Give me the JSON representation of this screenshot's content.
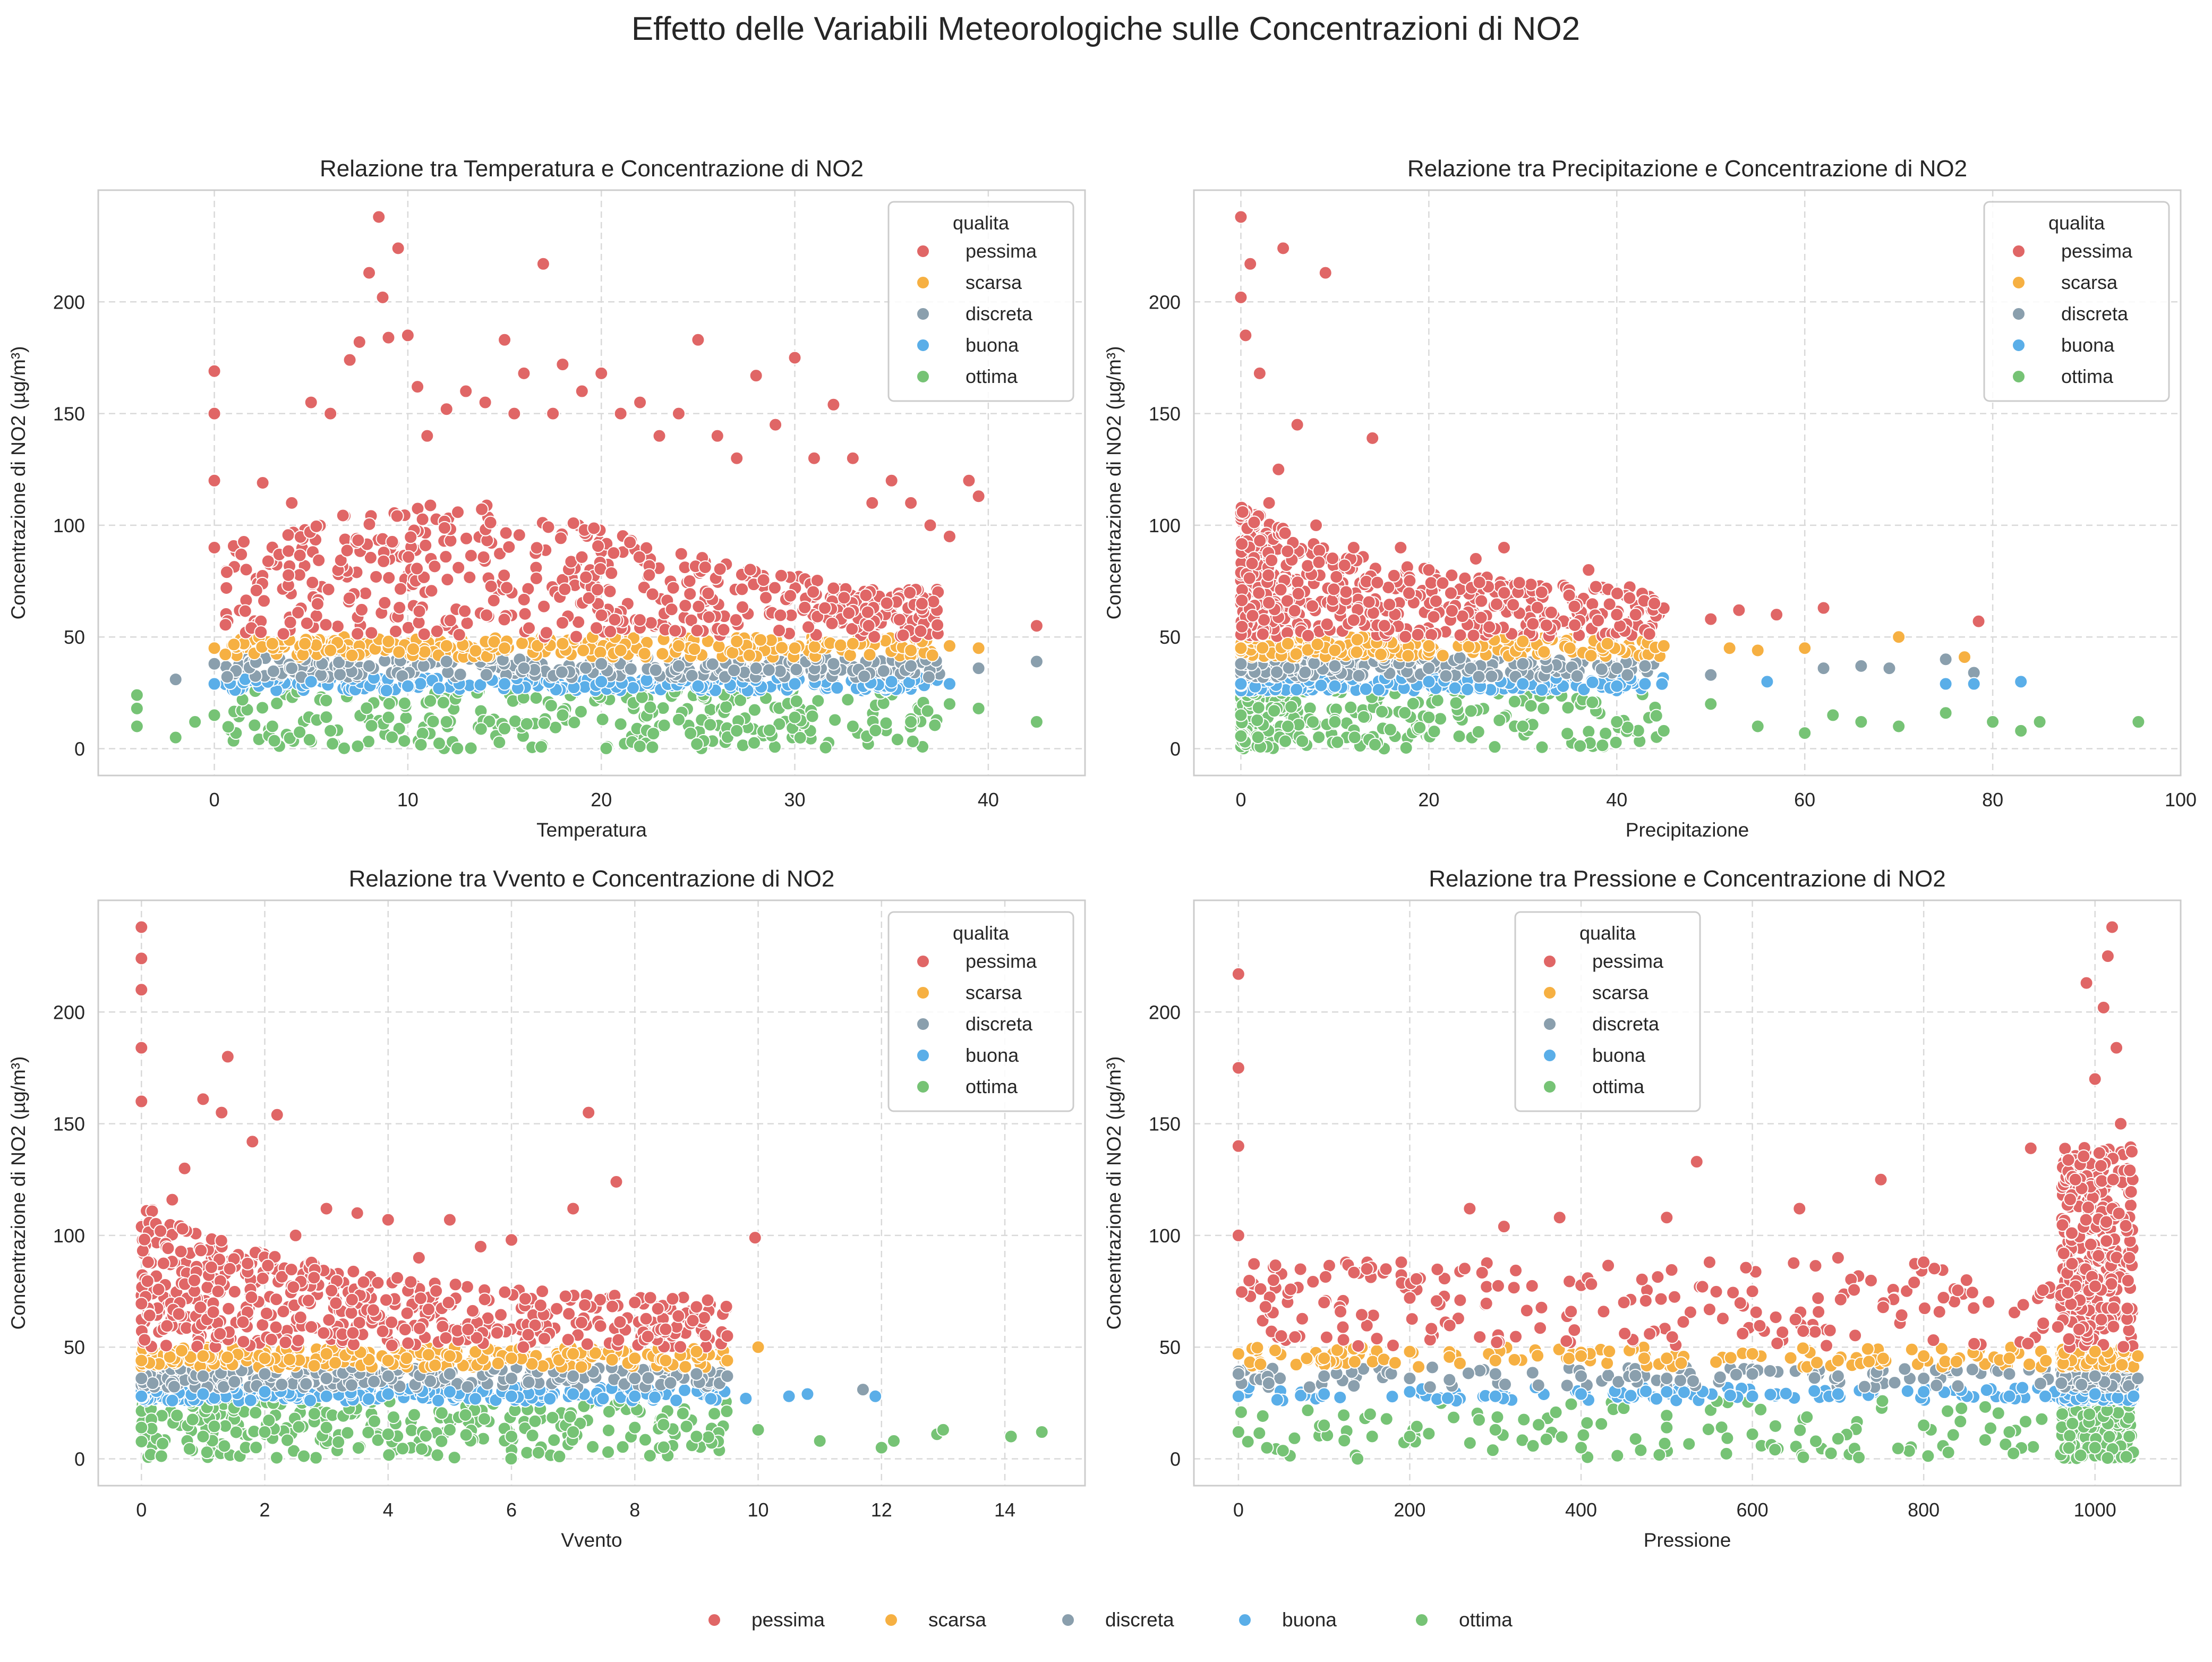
{
  "figure": {
    "suptitle": "Effetto delle Variabili Meteorologiche sulle Concentrazioni di NO2"
  },
  "categories": [
    "pessima",
    "scarsa",
    "discreta",
    "buona",
    "ottima"
  ],
  "colors": {
    "pessima": "#e06666",
    "scarsa": "#f6b042",
    "discreta": "#8a9fad",
    "buona": "#5aaee8",
    "ottima": "#76c375"
  },
  "legend_title": "qualita",
  "bottom_legend": {
    "labels": [
      "pessima",
      "scarsa",
      "discreta",
      "buona",
      "ottima"
    ]
  },
  "chart_data": [
    {
      "type": "scatter",
      "title": "Relazione tra Temperatura e Concentrazione di NO2",
      "xlabel": "Temperatura",
      "ylabel": "Concentrazione di NO2 (µg/m³)",
      "xlim": [
        -6,
        45
      ],
      "ylim": [
        -12,
        250
      ],
      "xticks": [
        0,
        10,
        20,
        30,
        40
      ],
      "yticks": [
        0,
        50,
        100,
        150,
        200
      ],
      "legend_location": "upper right",
      "series": [
        {
          "name": "pessima",
          "x": [
            0,
            0,
            0,
            0,
            2.5,
            4,
            5,
            6,
            7,
            7.5,
            8,
            8.5,
            8.7,
            9,
            9.5,
            10,
            10.5,
            11,
            12,
            13,
            14,
            15,
            15.5,
            16,
            17,
            17.5,
            18,
            19,
            20,
            21,
            22,
            23,
            24,
            25,
            26,
            27,
            28,
            29,
            30,
            31,
            32,
            33,
            34,
            35,
            36,
            37,
            38,
            39,
            39.5,
            42.5
          ],
          "y": [
            169,
            150,
            120,
            90,
            119,
            110,
            155,
            150,
            174,
            182,
            213,
            238,
            202,
            184,
            224,
            185,
            162,
            140,
            152,
            160,
            155,
            183,
            150,
            168,
            217,
            150,
            172,
            160,
            168,
            150,
            155,
            140,
            150,
            183,
            140,
            130,
            167,
            145,
            175,
            130,
            154,
            130,
            110,
            120,
            110,
            100,
            95,
            120,
            113,
            55
          ]
        },
        {
          "name": "scarsa",
          "x": [
            0,
            3,
            6,
            9,
            12,
            15,
            18,
            21,
            24,
            27,
            30,
            33,
            36,
            38,
            39.5
          ],
          "y": [
            45,
            47,
            44,
            48,
            46,
            45,
            47,
            44,
            46,
            48,
            45,
            47,
            44,
            46,
            45
          ]
        },
        {
          "name": "discreta",
          "x": [
            -2,
            0,
            4,
            8,
            12,
            16,
            20,
            24,
            28,
            32,
            36,
            39.5,
            42.5
          ],
          "y": [
            31,
            38,
            36,
            37,
            39,
            36,
            38,
            37,
            36,
            38,
            37,
            36,
            39
          ]
        },
        {
          "name": "buona",
          "x": [
            0,
            5,
            10,
            15,
            20,
            25,
            30,
            35,
            38
          ],
          "y": [
            29,
            30,
            28,
            29,
            30,
            28,
            29,
            30,
            29
          ]
        },
        {
          "name": "ottima",
          "x": [
            -4,
            -4,
            -4,
            -2,
            -1,
            0,
            3,
            6,
            9,
            12,
            15,
            18,
            21,
            24,
            27,
            30,
            33,
            36,
            38,
            39.5,
            42.5
          ],
          "y": [
            24,
            18,
            10,
            5,
            12,
            15,
            10,
            8,
            14,
            12,
            9,
            15,
            11,
            13,
            8,
            14,
            10,
            12,
            20,
            18,
            12
          ]
        }
      ]
    },
    {
      "type": "scatter",
      "title": "Relazione tra Precipitazione e Concentrazione di NO2",
      "xlabel": "Precipitazione",
      "ylabel": "Concentrazione di NO2 (µg/m³)",
      "xlim": [
        -5,
        100
      ],
      "ylim": [
        -12,
        250
      ],
      "xticks": [
        0,
        20,
        40,
        60,
        80,
        100
      ],
      "yticks": [
        0,
        50,
        100,
        150,
        200
      ],
      "legend_location": "upper right",
      "series": [
        {
          "name": "pessima",
          "x": [
            0,
            0,
            0.5,
            1,
            2,
            3,
            4,
            4.5,
            6,
            8,
            9,
            12,
            14,
            17,
            20,
            25,
            28,
            32,
            37,
            40,
            42,
            44,
            50,
            53,
            57,
            62,
            78.5
          ],
          "y": [
            238,
            202,
            185,
            217,
            168,
            110,
            125,
            224,
            145,
            100,
            213,
            90,
            139,
            90,
            80,
            85,
            90,
            70,
            80,
            60,
            60,
            65,
            58,
            62,
            60,
            63,
            57
          ]
        },
        {
          "name": "scarsa",
          "x": [
            0,
            5,
            10,
            20,
            30,
            35,
            39,
            45,
            52,
            55,
            60,
            70,
            77
          ],
          "y": [
            45,
            47,
            44,
            46,
            48,
            45,
            47,
            46,
            45,
            44,
            45,
            50,
            41
          ]
        },
        {
          "name": "discreta",
          "x": [
            0,
            10,
            20,
            30,
            40,
            43,
            50,
            62,
            66,
            69,
            75,
            78
          ],
          "y": [
            38,
            37,
            36,
            38,
            36,
            37,
            33,
            36,
            37,
            36,
            40,
            34
          ]
        },
        {
          "name": "buona",
          "x": [
            0,
            10,
            20,
            30,
            40,
            43,
            56,
            75,
            78,
            83
          ],
          "y": [
            29,
            28,
            30,
            29,
            28,
            29,
            30,
            29,
            29,
            30
          ]
        },
        {
          "name": "ottima",
          "x": [
            0,
            5,
            10,
            20,
            30,
            40,
            45,
            50,
            55,
            60,
            63,
            66,
            70,
            75,
            80,
            83,
            85,
            95.5
          ],
          "y": [
            15,
            10,
            12,
            14,
            10,
            12,
            8,
            20,
            10,
            7,
            15,
            12,
            10,
            16,
            12,
            8,
            12,
            12
          ]
        }
      ]
    },
    {
      "type": "scatter",
      "title": "Relazione tra Vvento e Concentrazione di NO2",
      "xlabel": "Vvento",
      "ylabel": "Concentrazione di NO2 (µg/m³)",
      "xlim": [
        -0.7,
        15.3
      ],
      "ylim": [
        -12,
        250
      ],
      "xticks": [
        0,
        2,
        4,
        6,
        8,
        10,
        12,
        14
      ],
      "yticks": [
        0,
        50,
        100,
        150,
        200
      ],
      "legend_location": "upper right",
      "series": [
        {
          "name": "pessima",
          "x": [
            0,
            0,
            0,
            0,
            0,
            0.5,
            0.7,
            1,
            1.3,
            1.4,
            1.8,
            2.2,
            2.5,
            3,
            3.5,
            4,
            4.5,
            5,
            5.5,
            6,
            6.5,
            7,
            7.25,
            7.7,
            8,
            8.5,
            9,
            9.5,
            9.95
          ],
          "y": [
            238,
            224,
            210,
            184,
            160,
            116,
            130,
            161,
            155,
            180,
            142,
            154,
            100,
            112,
            110,
            107,
            90,
            107,
            95,
            98,
            75,
            112,
            155,
            124,
            70,
            58,
            68,
            55,
            99
          ]
        },
        {
          "name": "scarsa",
          "x": [
            0,
            1,
            2,
            3,
            4,
            5,
            6,
            7,
            8,
            8.5,
            9,
            9.5,
            10
          ],
          "y": [
            44,
            46,
            45,
            47,
            44,
            46,
            45,
            47,
            45,
            44,
            48,
            44,
            50
          ]
        },
        {
          "name": "discreta",
          "x": [
            0,
            1,
            2,
            3,
            4,
            5,
            6,
            7,
            8,
            9,
            9.5,
            11.7
          ],
          "y": [
            36,
            37,
            38,
            36,
            37,
            38,
            36,
            37,
            36,
            38,
            37,
            31
          ]
        },
        {
          "name": "buona",
          "x": [
            0,
            1,
            2,
            3,
            4,
            5,
            6,
            7,
            8,
            9.8,
            10.5,
            10.8,
            11.9
          ],
          "y": [
            28,
            29,
            30,
            28,
            29,
            30,
            28,
            29,
            28,
            27,
            28,
            29,
            28
          ]
        },
        {
          "name": "ottima",
          "x": [
            0,
            1,
            2,
            3,
            4,
            5,
            6,
            7,
            8,
            9,
            10,
            11,
            12,
            12.2,
            12.9,
            13,
            14.1,
            14.6
          ],
          "y": [
            14,
            10,
            12,
            14,
            11,
            13,
            10,
            12,
            14,
            10,
            13,
            8,
            5,
            8,
            11,
            13,
            10,
            12
          ]
        }
      ]
    },
    {
      "type": "scatter",
      "title": "Relazione tra Pressione e Concentrazione di NO2",
      "xlabel": "Pressione",
      "ylabel": "Concentrazione di NO2 (µg/m³)",
      "xlim": [
        -52,
        1100
      ],
      "ylim": [
        -12,
        250
      ],
      "xticks": [
        0,
        200,
        400,
        600,
        800,
        1000
      ],
      "yticks": [
        0,
        50,
        100,
        150,
        200
      ],
      "legend_location": "upper center",
      "series": [
        {
          "name": "pessima",
          "x": [
            0,
            0,
            0,
            0,
            50,
            100,
            150,
            200,
            270,
            310,
            375,
            450,
            500,
            535,
            550,
            600,
            655,
            700,
            750,
            800,
            850,
            925,
            990,
            1000,
            1010,
            1015,
            1020,
            1025,
            1030,
            1040
          ],
          "y": [
            217,
            175,
            140,
            100,
            55,
            70,
            85,
            72,
            112,
            104,
            108,
            70,
            108,
            133,
            88,
            75,
            112,
            90,
            125,
            88,
            80,
            139,
            213,
            170,
            202,
            225,
            238,
            184,
            150,
            90
          ]
        },
        {
          "name": "scarsa",
          "x": [
            0,
            100,
            200,
            300,
            400,
            500,
            600,
            700,
            800,
            900,
            1000,
            1050
          ],
          "y": [
            47,
            45,
            48,
            44,
            46,
            45,
            47,
            44,
            46,
            45,
            48,
            46
          ]
        },
        {
          "name": "discreta",
          "x": [
            0,
            100,
            200,
            300,
            400,
            500,
            600,
            700,
            800,
            900,
            1000,
            1050
          ],
          "y": [
            38,
            37,
            36,
            38,
            37,
            36,
            38,
            37,
            36,
            38,
            37,
            36
          ]
        },
        {
          "name": "buona",
          "x": [
            0,
            100,
            200,
            300,
            400,
            500,
            600,
            700,
            800,
            900,
            1000,
            1045
          ],
          "y": [
            28,
            29,
            30,
            28,
            29,
            30,
            28,
            29,
            30,
            28,
            29,
            28
          ]
        },
        {
          "name": "ottima",
          "x": [
            0,
            100,
            200,
            300,
            400,
            500,
            600,
            700,
            800,
            900,
            1000,
            1040
          ],
          "y": [
            12,
            15,
            10,
            13,
            5,
            14,
            11,
            9,
            15,
            12,
            5,
            10
          ]
        }
      ]
    }
  ]
}
